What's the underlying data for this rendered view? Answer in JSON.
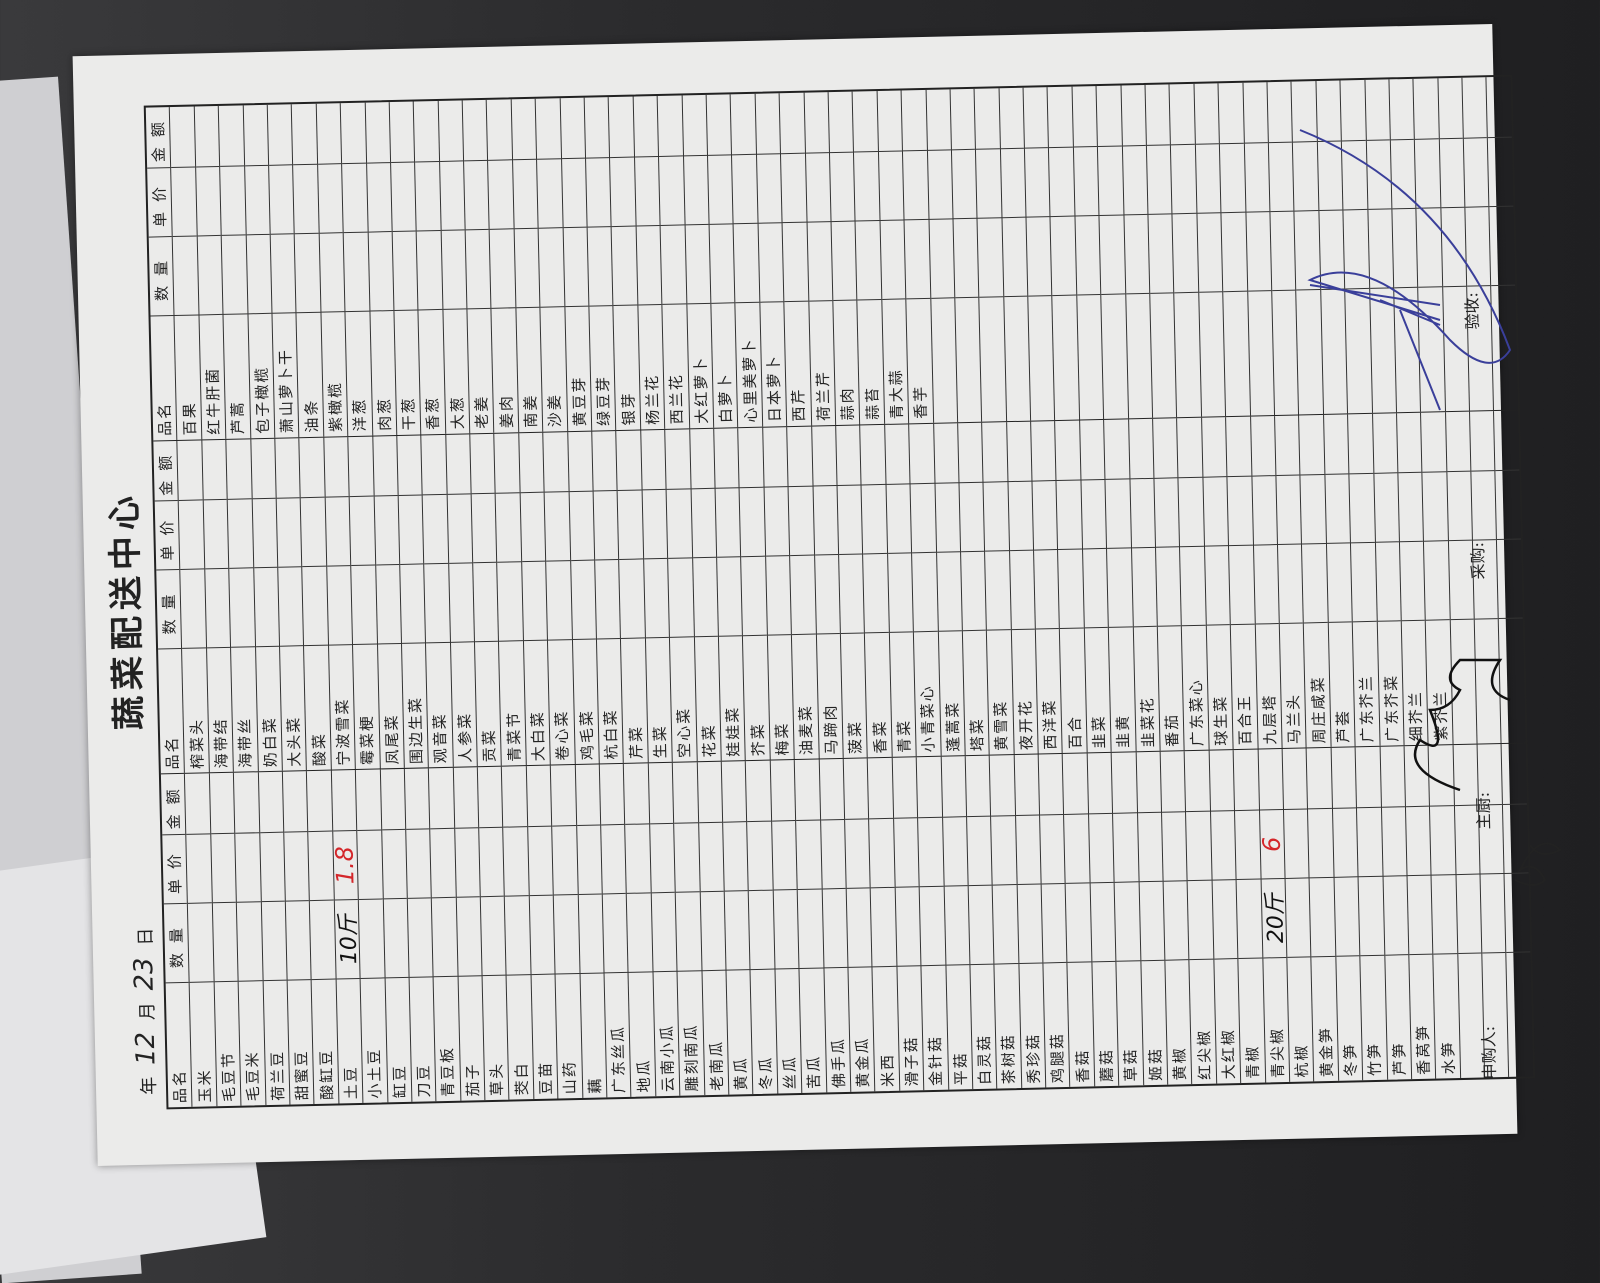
{
  "form": {
    "title": "蔬菜配送中心",
    "date": {
      "year_label": "年",
      "month": "12",
      "month_label": "月",
      "day": "23",
      "day_label": "日"
    },
    "headers": {
      "name": "品名",
      "qty": "数量",
      "price": "单价",
      "amount": "金额"
    },
    "columns": [
      [
        "玉米",
        "毛豆节",
        "毛豆米",
        "荷兰豆",
        "甜蜜豆",
        "酸缸豆",
        "土豆",
        "小土豆",
        "缸豆",
        "刀豆",
        "青豆板",
        "茄子",
        "草头",
        "茭白",
        "豆苗",
        "山药",
        "藕",
        "广东丝瓜",
        "地瓜",
        "云南小瓜",
        "雕刻南瓜",
        "老南瓜",
        "黄瓜",
        "冬瓜",
        "丝瓜",
        "苦瓜",
        "佛手瓜",
        "黄金瓜",
        "米西",
        "滑子菇",
        "金针菇",
        "平菇",
        "白灵菇",
        "茶树菇",
        "秀珍菇",
        "鸡腿菇",
        "香菇",
        "蘑菇",
        "草菇",
        "姬菇",
        "黄椒",
        "红尖椒",
        "大红椒",
        "青椒",
        "青尖椒",
        "杭椒",
        "黄金笋",
        "冬笋",
        "竹笋",
        "芦笋",
        "香莴笋",
        "水笋"
      ],
      [
        "榨菜头",
        "海带结",
        "海带丝",
        "奶白菜",
        "大头菜",
        "酸菜",
        "宁波雪菜",
        "霉菜梗",
        "凤尾菜",
        "围边生菜",
        "观音菜",
        "人参菜",
        "贡菜",
        "青菜节",
        "大白菜",
        "卷心菜",
        "鸡毛菜",
        "杭白菜",
        "芹菜",
        "生菜",
        "空心菜",
        "花菜",
        "娃娃菜",
        "芥菜",
        "梅菜",
        "油麦菜",
        "马蹄肉",
        "菠菜",
        "香菜",
        "青菜",
        "小青菜心",
        "蓬蒿菜",
        "塔菜",
        "黄雪菜",
        "夜开花",
        "西洋菜",
        "百合",
        "韭菜",
        "韭黄",
        "韭菜花",
        "番茄",
        "广东菜心",
        "球生菜",
        "百合王",
        "九层塔",
        "马兰头",
        "周庄咸菜",
        "芦荟",
        "广东芥兰",
        "广东芥菜",
        "细芥兰",
        "紫芥兰"
      ],
      [
        "百果",
        "红牛肝菌",
        "芦蒿",
        "包子橄榄",
        "萧山萝卜干",
        "油条",
        "紫橄榄",
        "洋葱",
        "肉葱",
        "干葱",
        "香葱",
        "大葱",
        "老姜",
        "姜肉",
        "南姜",
        "沙姜",
        "黄豆芽",
        "绿豆芽",
        "银芽",
        "杨兰花",
        "西兰花",
        "大红萝卜",
        "白萝卜",
        "心里美萝卜",
        "日本萝卜",
        "西芹",
        "荷兰芹",
        "蒜肉",
        "蒜苔",
        "青大蒜",
        "香芋"
      ]
    ],
    "entries": [
      {
        "column": 0,
        "item": "土豆",
        "qty": "10斤",
        "price": "1.8"
      },
      {
        "column": 0,
        "item": "青尖椒",
        "qty": "20斤",
        "price": "6"
      }
    ],
    "footer": {
      "requester": "申购人:",
      "chef": "主厨:",
      "purchasing": "采购:",
      "acceptance": "验收:"
    },
    "colors": {
      "handwriting_red": "#d4262a",
      "signature_blue": "#3a3f9a",
      "paper": "#ebebea"
    }
  }
}
